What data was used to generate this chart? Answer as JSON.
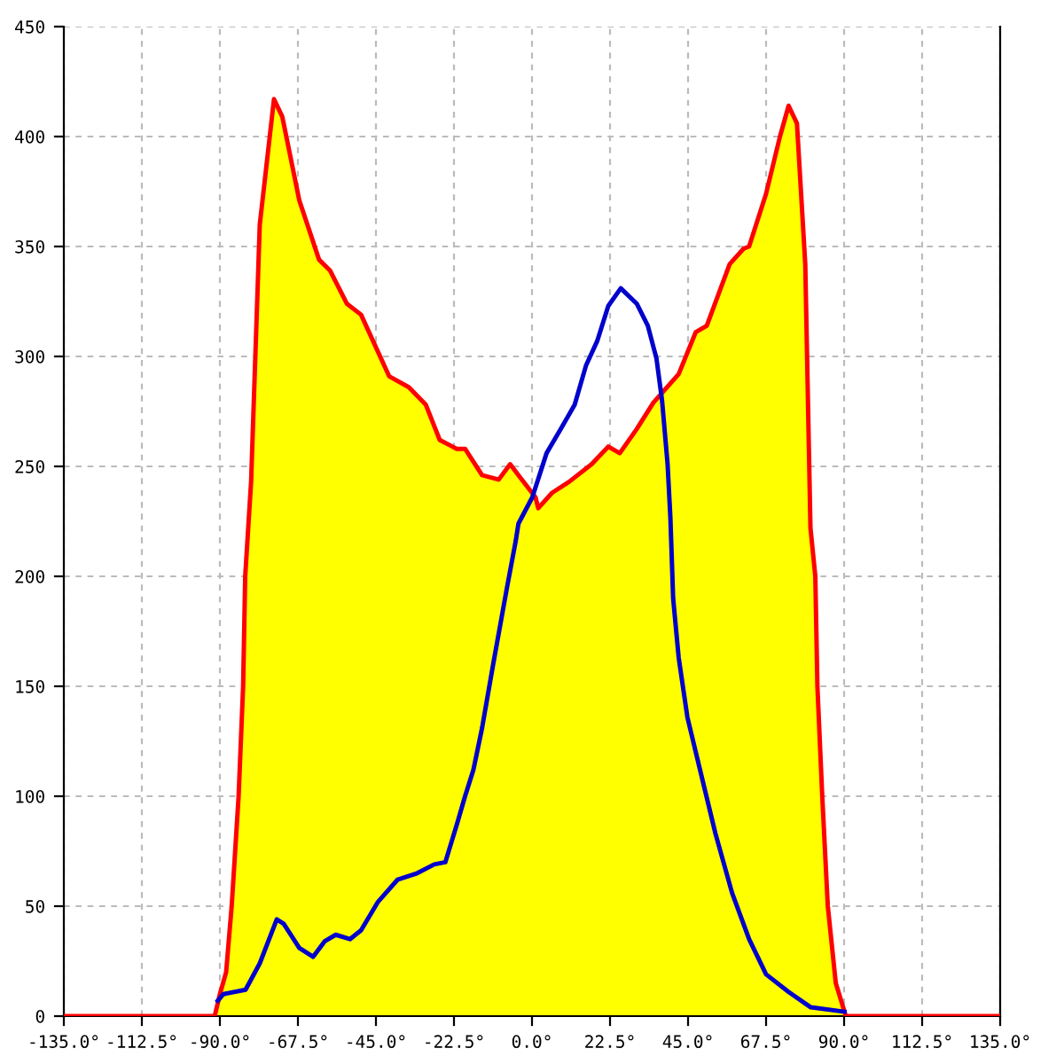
{
  "chart_data": {
    "type": "area",
    "xlim": [
      -135,
      135
    ],
    "ylim": [
      0,
      450
    ],
    "xticks": [
      {
        "value": -135,
        "label": "-135.0°"
      },
      {
        "value": -112.5,
        "label": "-112.5°"
      },
      {
        "value": -90,
        "label": "-90.0°"
      },
      {
        "value": -67.5,
        "label": "-67.5°"
      },
      {
        "value": -45,
        "label": "-45.0°"
      },
      {
        "value": -22.5,
        "label": "-22.5°"
      },
      {
        "value": 0,
        "label": "0.0°"
      },
      {
        "value": 22.5,
        "label": "22.5°"
      },
      {
        "value": 45,
        "label": "45.0°"
      },
      {
        "value": 67.5,
        "label": "67.5°"
      },
      {
        "value": 90,
        "label": "90.0°"
      },
      {
        "value": 112.5,
        "label": "112.5°"
      },
      {
        "value": 135,
        "label": "135.0°"
      }
    ],
    "yticks": [
      0,
      50,
      100,
      150,
      200,
      250,
      300,
      350,
      400,
      450
    ],
    "grid": true,
    "line_style": "solid",
    "series": [
      {
        "color": "#ffff00",
        "x": [
          -135,
          -91.5,
          -90,
          -88.2,
          -86.6,
          -84.6,
          -83.3,
          -82.7,
          -81,
          -78.5,
          -74.4,
          -72,
          -67.1,
          -61.4,
          -58.2,
          -53.4,
          -49.3,
          -41.2,
          -35.5,
          -30.6,
          -26.6,
          -21.7,
          -19.3,
          -14.4,
          -9.6,
          -6.3,
          -3.9,
          1,
          1.8,
          5.8,
          10.7,
          17.2,
          22,
          25.3,
          30.2,
          35,
          42.3,
          47.2,
          50.4,
          57,
          61,
          62.6,
          67.5,
          71.5,
          74,
          76.4,
          78.8,
          80.3,
          81.7,
          82.3,
          83.7,
          85.3,
          87.6,
          90.5,
          135
        ],
        "values": [
          0,
          0,
          10,
          20,
          50,
          100,
          150,
          200,
          243,
          360,
          417,
          409,
          371,
          344,
          339,
          324,
          319,
          291,
          286,
          278,
          262,
          258,
          258,
          246,
          244,
          251,
          246,
          236,
          231,
          238,
          243,
          251,
          259,
          256,
          267,
          279,
          292,
          311,
          314,
          342,
          349,
          350,
          374,
          400,
          414,
          406,
          342,
          222,
          200,
          150,
          100,
          50,
          15,
          0,
          0
        ]
      },
      {
        "type": "line",
        "color": "#0000cc",
        "x": [
          -90.6,
          -89,
          -82.6,
          -78.5,
          -73.6,
          -71.6,
          -67.1,
          -63.1,
          -59.8,
          -56.6,
          -52.5,
          -49.3,
          -44.4,
          -38.8,
          -33.1,
          -28.2,
          -25,
          -21.7,
          -19.3,
          -16.9,
          -14.4,
          -11.2,
          -7.2,
          -4.7,
          -3.9,
          0.1,
          4.2,
          8.3,
          12.3,
          15.6,
          18.8,
          22,
          25.6,
          30.2,
          33.4,
          35.9,
          37.5,
          39.1,
          39.9,
          40.7,
          42.3,
          44.8,
          48,
          52.9,
          57.7,
          62.6,
          67.5,
          74,
          80.4,
          90.1
        ],
        "values": [
          7,
          10,
          12,
          24,
          44,
          42,
          31,
          27,
          34,
          37,
          35,
          39,
          52,
          62,
          65,
          69,
          70,
          87,
          100,
          112,
          131,
          160,
          195,
          216,
          224,
          236,
          256,
          267,
          278,
          296,
          307,
          323,
          331,
          324,
          314,
          299,
          280,
          251,
          227,
          190,
          163,
          136,
          115,
          83,
          56,
          35,
          19,
          11,
          4,
          2
        ]
      }
    ]
  }
}
